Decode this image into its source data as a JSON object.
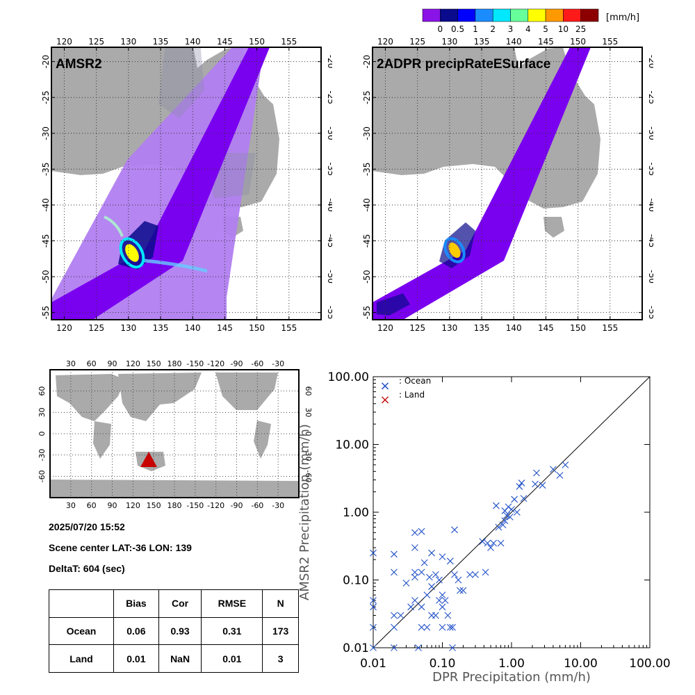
{
  "colorbar": {
    "unit": "[mm/h]",
    "labels": [
      "0",
      "0.5",
      "1",
      "2",
      "3",
      "4",
      "5",
      "10",
      "25"
    ],
    "colors": [
      "#8a14e8",
      "#0a0a8c",
      "#0000ff",
      "#1a8cff",
      "#00e8ff",
      "#66ff99",
      "#ffff00",
      "#ff9900",
      "#ff1a1a",
      "#8c0000"
    ]
  },
  "maps": [
    {
      "title": "AMSR2",
      "lon_labels": [
        "120",
        "125",
        "130",
        "135",
        "140",
        "145",
        "150",
        "155"
      ],
      "lat_labels": [
        "-20",
        "-25",
        "-30",
        "-35",
        "-40",
        "-45",
        "-50",
        "-55"
      ]
    },
    {
      "title": "2ADPR precipRateESurface",
      "lon_labels": [
        "120",
        "125",
        "130",
        "135",
        "140",
        "145",
        "150",
        "155"
      ],
      "lat_labels": [
        "-20",
        "-25",
        "-30",
        "-35",
        "-40",
        "-45",
        "-50",
        "-55"
      ]
    }
  ],
  "world": {
    "lon_labels": [
      "30",
      "60",
      "90",
      "120",
      "150",
      "180",
      "-150",
      "-120",
      "-90",
      "-60",
      "-30"
    ],
    "lat_labels": [
      "60",
      "30",
      "0",
      "-30",
      "-60"
    ]
  },
  "info": {
    "datetime": "2025/07/20 15:52",
    "scene": "Scene center LAT:-36   LON: 139",
    "delta": "DeltaT:  604 (sec)"
  },
  "stats": {
    "headers": [
      "",
      "Bias",
      "Cor",
      "RMSE",
      "N"
    ],
    "rows": [
      [
        "Ocean",
        "0.06",
        "0.93",
        "0.31",
        "173"
      ],
      [
        "Land",
        "0.01",
        "NaN",
        "0.01",
        "3"
      ]
    ]
  },
  "chart_data": {
    "type": "scatter",
    "xlabel": "DPR Precipitation (mm/h)",
    "ylabel": "AMSR2 Precipitation (mm/h)",
    "x_scale": "log",
    "y_scale": "log",
    "xlim": [
      0.01,
      100
    ],
    "ylim": [
      0.01,
      100
    ],
    "tick_labels": [
      "0.01",
      "0.10",
      "1.00",
      "10.00",
      "100.00"
    ],
    "series": [
      {
        "name": ": Ocean",
        "color": "#1f50c8",
        "points": [
          [
            0.01,
            0.25
          ],
          [
            0.01,
            0.05
          ],
          [
            0.01,
            0.04
          ],
          [
            0.01,
            0.02
          ],
          [
            0.01,
            0.01
          ],
          [
            0.02,
            0.24
          ],
          [
            0.02,
            0.13
          ],
          [
            0.02,
            0.03
          ],
          [
            0.02,
            0.02
          ],
          [
            0.025,
            0.03
          ],
          [
            0.02,
            0.01
          ],
          [
            0.03,
            0.09
          ],
          [
            0.035,
            0.04
          ],
          [
            0.04,
            0.5
          ],
          [
            0.04,
            0.3
          ],
          [
            0.04,
            0.13
          ],
          [
            0.04,
            0.11
          ],
          [
            0.04,
            0.05
          ],
          [
            0.045,
            0.01
          ],
          [
            0.05,
            0.52
          ],
          [
            0.05,
            0.13
          ],
          [
            0.05,
            0.04
          ],
          [
            0.05,
            0.02
          ],
          [
            0.055,
            0.18
          ],
          [
            0.06,
            0.02
          ],
          [
            0.06,
            0.06
          ],
          [
            0.065,
            0.11
          ],
          [
            0.07,
            0.03
          ],
          [
            0.07,
            0.08
          ],
          [
            0.07,
            0.25
          ],
          [
            0.08,
            0.12
          ],
          [
            0.08,
            0.03
          ],
          [
            0.09,
            0.05
          ],
          [
            0.09,
            0.1
          ],
          [
            0.1,
            0.22
          ],
          [
            0.1,
            0.04
          ],
          [
            0.1,
            0.06
          ],
          [
            0.1,
            0.02
          ],
          [
            0.11,
            0.05
          ],
          [
            0.12,
            0.03
          ],
          [
            0.13,
            0.19
          ],
          [
            0.13,
            0.02
          ],
          [
            0.14,
            0.02
          ],
          [
            0.14,
            0.01
          ],
          [
            0.15,
            0.55
          ],
          [
            0.15,
            0.12
          ],
          [
            0.17,
            0.1
          ],
          [
            0.18,
            0.07
          ],
          [
            0.2,
            0.07
          ],
          [
            0.25,
            0.12
          ],
          [
            0.3,
            0.12
          ],
          [
            0.38,
            0.37
          ],
          [
            0.42,
            0.13
          ],
          [
            0.45,
            0.35
          ],
          [
            0.5,
            0.3
          ],
          [
            0.55,
            0.35
          ],
          [
            0.6,
            1.25
          ],
          [
            0.65,
            0.6
          ],
          [
            0.7,
            0.35
          ],
          [
            0.75,
            0.65
          ],
          [
            0.8,
            1.05
          ],
          [
            0.8,
            0.75
          ],
          [
            0.85,
            0.9
          ],
          [
            0.9,
            1.2
          ],
          [
            0.95,
            0.85
          ],
          [
            1.0,
            1.1
          ],
          [
            1.1,
            1.55
          ],
          [
            1.2,
            1.0
          ],
          [
            1.3,
            2.4
          ],
          [
            1.4,
            2.7
          ],
          [
            1.5,
            1.6
          ],
          [
            2.2,
            2.6
          ],
          [
            2.3,
            3.8
          ],
          [
            2.8,
            2.5
          ],
          [
            4.0,
            4.3
          ],
          [
            5.0,
            3.5
          ],
          [
            6.0,
            5.0
          ]
        ]
      },
      {
        "name": ": Land",
        "color": "#c81414",
        "points": []
      }
    ]
  }
}
